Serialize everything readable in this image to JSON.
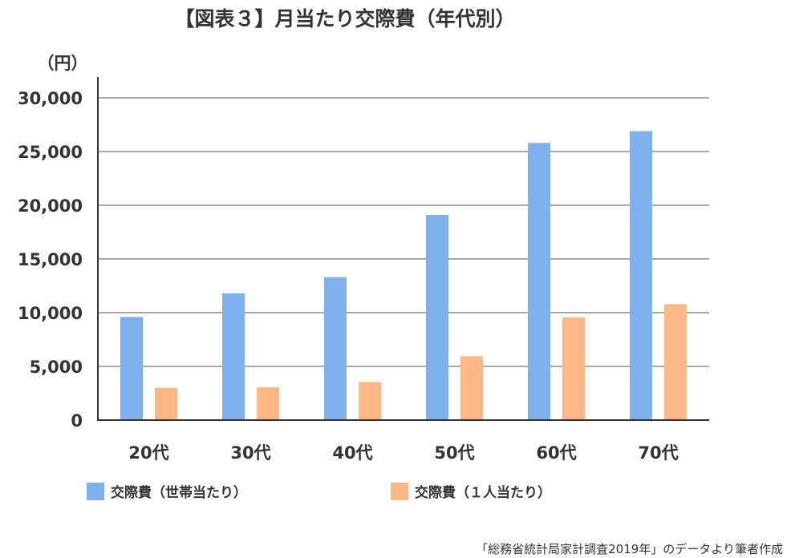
{
  "chart_data": {
    "type": "bar",
    "title": "【図表３】月当たり交際費（年代別）",
    "ylabel": "（円）",
    "xlabel": "",
    "ylim": [
      0,
      30000
    ],
    "yticks": [
      0,
      5000,
      10000,
      15000,
      20000,
      25000,
      30000
    ],
    "ytick_labels": [
      "0",
      "5,000",
      "10,000",
      "15,000",
      "20,000",
      "25,000",
      "30,000"
    ],
    "categories": [
      "20代",
      "30代",
      "40代",
      "50代",
      "60代",
      "70代"
    ],
    "grid": true,
    "legend_position": "bottom",
    "series": [
      {
        "name": "交際費（世帯当たり）",
        "color": "#7FB1EC",
        "values": [
          9600,
          11800,
          13300,
          19100,
          25800,
          26900
        ]
      },
      {
        "name": "交際費（１人当たり）",
        "color": "#FFB885",
        "values": [
          3000,
          3050,
          3550,
          5950,
          9550,
          10800
        ]
      }
    ],
    "source": "「総務省統計局家計調査2019年」のデータより筆者作成"
  }
}
